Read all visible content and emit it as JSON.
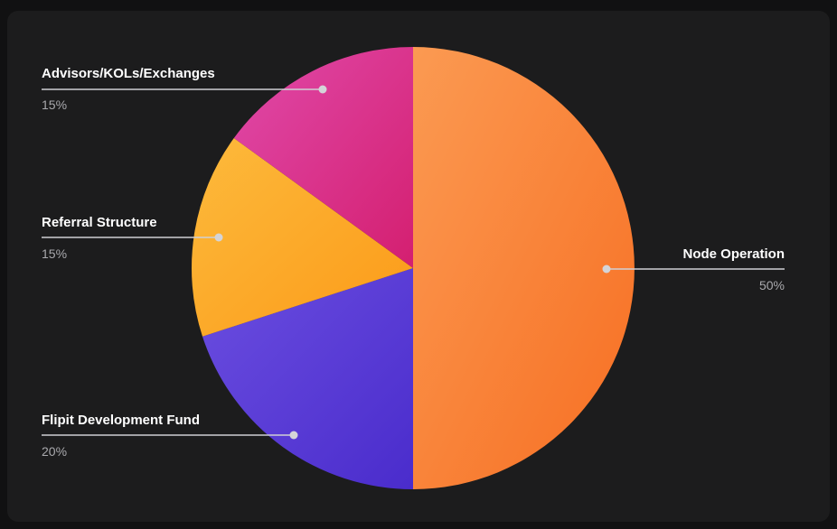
{
  "chart_data": {
    "type": "pie",
    "slices": [
      {
        "name": "Node Operation",
        "value": 50,
        "value_label": "50%",
        "color": "#fb8a3a"
      },
      {
        "name": "Flipit Development Fund",
        "value": 20,
        "value_label": "20%",
        "color": "#5a3ad6"
      },
      {
        "name": "Referral Structure",
        "value": 15,
        "value_label": "15%",
        "color": "#fcaa2c"
      },
      {
        "name": "Advisors/KOLs/Exchanges",
        "value": 15,
        "value_label": "15%",
        "color": "#d8369a"
      }
    ],
    "start_angle": "12 o'clock",
    "direction": "clockwise"
  }
}
